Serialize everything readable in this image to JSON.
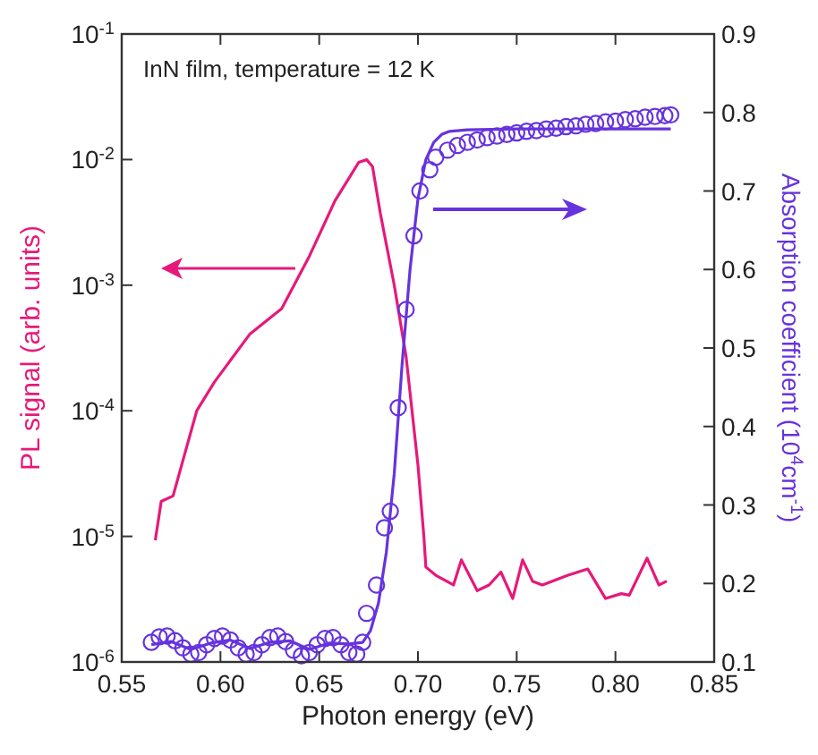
{
  "chart_data": {
    "type": "line",
    "xlabel": "Photon energy (eV)",
    "ylabel": "PL signal (arb. units)",
    "y2label": "Absorption coefficient (10$^{4}$cm$^{-1}$)",
    "annotations": [
      "InN film, temperature = 12 K"
    ],
    "xlim": [
      0.55,
      0.85
    ],
    "xticks": [
      {
        "value": 0.55,
        "label": "0.55"
      },
      {
        "value": 0.6,
        "label": "0.60"
      },
      {
        "value": 0.65,
        "label": "0.65"
      },
      {
        "value": 0.7,
        "label": "0.70"
      },
      {
        "value": 0.75,
        "label": "0.75"
      },
      {
        "value": 0.8,
        "label": "0.80"
      },
      {
        "value": 0.85,
        "label": "0.85"
      }
    ],
    "log": "y",
    "ylim": [
      1e-06,
      0.1
    ],
    "yticks": [
      {
        "value": 1e-06,
        "label": "10$^{-6}$"
      },
      {
        "value": 1e-05,
        "label": "10$^{-5}$"
      },
      {
        "value": 0.0001,
        "label": "10$^{-4}$"
      },
      {
        "value": 0.001,
        "label": "10$^{-3}$"
      },
      {
        "value": 0.01,
        "label": "10$^{-2}$"
      },
      {
        "value": 0.1,
        "label": "10$^{-1}$"
      }
    ],
    "y2lim": [
      0.1,
      0.9
    ],
    "y2ticks": [
      0.1,
      0.2,
      0.3,
      0.4,
      0.5,
      0.6,
      0.7,
      0.8,
      0.9
    ],
    "grid": false,
    "series": [
      {
        "color": "#e6197a",
        "x": [
          0.567,
          0.57,
          0.576,
          0.588,
          0.597,
          0.615,
          0.631,
          0.645,
          0.658,
          0.666,
          0.67,
          0.674,
          0.677,
          0.681,
          0.688,
          0.694,
          0.7,
          0.703,
          0.704,
          0.709,
          0.718,
          0.722,
          0.73,
          0.736,
          0.742,
          0.748,
          0.753,
          0.758,
          0.763,
          0.776,
          0.786,
          0.795,
          0.803,
          0.807,
          0.816,
          0.822,
          0.826
        ],
        "values": [
          9.3e-06,
          1.9e-05,
          2.1e-05,
          0.0001,
          0.00017,
          0.00041,
          0.00065,
          0.0017,
          0.0047,
          0.0075,
          0.0095,
          0.01,
          0.0088,
          0.0037,
          0.001,
          0.00027,
          3.7e-05,
          1e-05,
          5.7e-06,
          4.9e-06,
          4.1e-06,
          6.5e-06,
          3.7e-06,
          4.1e-06,
          5.2e-06,
          3.2e-06,
          6.5e-06,
          4.4e-06,
          4.1e-06,
          4.9e-06,
          5.5e-06,
          3.2e-06,
          3.5e-06,
          3.4e-06,
          6.7e-06,
          4.1e-06,
          4.4e-06
        ]
      },
      {
        "type": "scatter",
        "axis": "y2",
        "color": "#6633dd",
        "marker": "circle",
        "x": [
          0.565,
          0.569,
          0.573,
          0.577,
          0.581,
          0.585,
          0.589,
          0.593,
          0.597,
          0.601,
          0.605,
          0.609,
          0.613,
          0.617,
          0.621,
          0.625,
          0.629,
          0.633,
          0.637,
          0.641,
          0.645,
          0.649,
          0.653,
          0.657,
          0.661,
          0.665,
          0.669,
          0.672,
          0.674,
          0.679,
          0.683,
          0.686,
          0.69,
          0.694,
          0.698,
          0.701,
          0.706,
          0.709,
          0.715,
          0.72,
          0.725,
          0.73,
          0.735,
          0.74,
          0.745,
          0.75,
          0.755,
          0.76,
          0.765,
          0.77,
          0.775,
          0.78,
          0.785,
          0.79,
          0.795,
          0.8,
          0.805,
          0.81,
          0.815,
          0.82,
          0.825,
          0.828
        ],
        "values": [
          0.125,
          0.132,
          0.133,
          0.127,
          0.118,
          0.11,
          0.112,
          0.122,
          0.13,
          0.133,
          0.128,
          0.118,
          0.11,
          0.112,
          0.122,
          0.131,
          0.133,
          0.126,
          0.115,
          0.108,
          0.112,
          0.122,
          0.13,
          0.131,
          0.122,
          0.112,
          0.11,
          0.125,
          0.162,
          0.198,
          0.271,
          0.292,
          0.424,
          0.549,
          0.643,
          0.7,
          0.727,
          0.743,
          0.752,
          0.758,
          0.762,
          0.765,
          0.768,
          0.77,
          0.772,
          0.774,
          0.776,
          0.777,
          0.779,
          0.78,
          0.782,
          0.783,
          0.785,
          0.786,
          0.788,
          0.789,
          0.791,
          0.792,
          0.794,
          0.795,
          0.796,
          0.797
        ]
      },
      {
        "axis": "y2",
        "color": "#6633dd",
        "x": [
          0.565,
          0.575,
          0.585,
          0.595,
          0.605,
          0.615,
          0.625,
          0.635,
          0.645,
          0.655,
          0.665,
          0.672,
          0.676,
          0.68,
          0.684,
          0.688,
          0.692,
          0.696,
          0.7,
          0.704,
          0.708,
          0.712,
          0.716,
          0.725,
          0.75,
          0.78,
          0.828
        ],
        "values": [
          0.122,
          0.126,
          0.116,
          0.124,
          0.128,
          0.117,
          0.125,
          0.127,
          0.116,
          0.124,
          0.123,
          0.125,
          0.14,
          0.175,
          0.24,
          0.34,
          0.48,
          0.6,
          0.69,
          0.74,
          0.762,
          0.772,
          0.776,
          0.778,
          0.779,
          0.779,
          0.779
        ]
      }
    ]
  }
}
